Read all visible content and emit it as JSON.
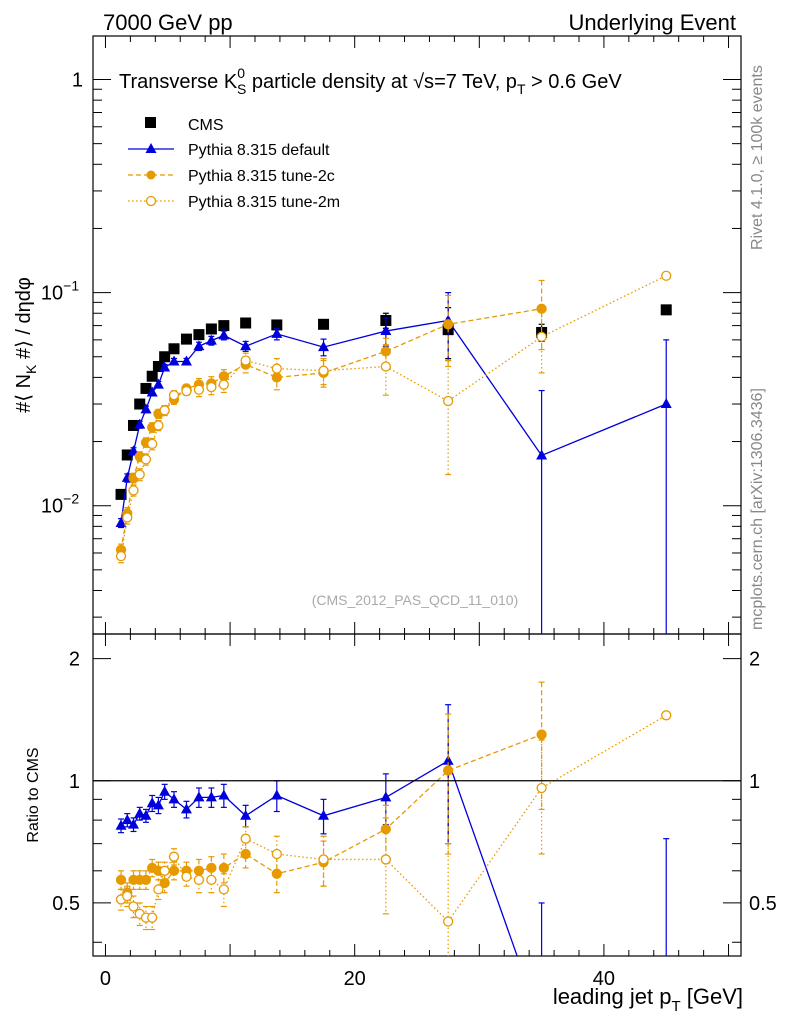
{
  "header": {
    "left": "7000 GeV pp",
    "right": "Underlying Event"
  },
  "side_labels": {
    "rivet": "Rivet 4.1.0, ≥ 100k events",
    "mcplots": "mcplots.cern.ch [arXiv:1306.3436]"
  },
  "chart_data": {
    "type": "scatter",
    "title": {
      "pre": "Transverse K",
      "sup": "0",
      "sub": "S",
      "mid": " particle density at ",
      "sqrt": "√s",
      "post": "=7 TeV, p",
      "sub2": "T",
      "tail": " > 0.6 GeV"
    },
    "ylabel": {
      "pre": "#⟨ N",
      "sub": "K",
      "post": " #⟩ / dηdφ"
    },
    "xlabel": {
      "pre": "leading jet p",
      "sub": "T",
      "post": " [GeV]"
    },
    "ratio_ylabel": "Ratio to CMS",
    "watermark": "(CMS_2012_PAS_QCD_11_010)",
    "xlim": [
      -1,
      51
    ],
    "ylim": [
      0.0025,
      1.6
    ],
    "ratio_ylim": [
      0.37,
      2.3
    ],
    "x_ticks": [
      "0",
      "20",
      "40"
    ],
    "y_tick_labels": [
      {
        "mant": "10",
        "exp": "−2"
      },
      {
        "mant": "10",
        "exp": "−1"
      },
      {
        "mant": "1",
        "exp": ""
      }
    ],
    "ratio_tick_labels": [
      "0.5",
      "1",
      "2"
    ],
    "x": [
      1.25,
      1.75,
      2.25,
      2.75,
      3.25,
      3.75,
      4.25,
      4.75,
      5.5,
      6.5,
      7.5,
      8.5,
      9.5,
      11.25,
      13.75,
      17.5,
      22.5,
      27.5,
      35.0,
      45.0
    ],
    "legend": [
      {
        "label": "CMS"
      },
      {
        "label": "Pythia 8.315 default"
      },
      {
        "label": "Pythia 8.315 tune-2c"
      },
      {
        "label": "Pythia 8.315 tune-2m"
      }
    ],
    "series": [
      {
        "name": "CMS",
        "color": "#000000",
        "values": [
          0.0113,
          0.0173,
          0.0238,
          0.03,
          0.0355,
          0.0405,
          0.045,
          0.05,
          0.0545,
          0.0605,
          0.0635,
          0.0675,
          0.07,
          0.072,
          0.0705,
          0.071,
          0.074,
          0.067,
          0.065,
          0.083
        ],
        "err": [
          0,
          0,
          0,
          0,
          0,
          0,
          0,
          0,
          0,
          0,
          0,
          0,
          0,
          0,
          0,
          0,
          0.006,
          0.018,
          0.006,
          0
        ],
        "ratio": [
          1,
          1,
          1,
          1,
          1,
          1,
          1,
          1,
          1,
          1,
          1,
          1,
          1,
          1,
          1,
          1,
          1,
          1,
          1,
          1
        ],
        "ratio_err": [
          0,
          0,
          0,
          0,
          0,
          0,
          0,
          0,
          0,
          0,
          0,
          0,
          0,
          0,
          0,
          0,
          0,
          0.27,
          0,
          0
        ]
      },
      {
        "name": "Pythia 8.315 default",
        "color": "#0000dd",
        "values": [
          0.0083,
          0.0135,
          0.018,
          0.024,
          0.0283,
          0.034,
          0.037,
          0.0445,
          0.0475,
          0.0475,
          0.056,
          0.0595,
          0.063,
          0.056,
          0.064,
          0.0555,
          0.066,
          0.074,
          0.0172,
          0.03
        ],
        "err": [
          0.0004,
          0.0006,
          0.0007,
          0.0009,
          0.001,
          0.0012,
          0.0013,
          0.0015,
          0.0016,
          0.0016,
          0.0025,
          0.0028,
          0.003,
          0.003,
          0.004,
          0.005,
          0.01,
          0.026,
          0.0175,
          0.03
        ],
        "ratio": [
          0.775,
          0.8,
          0.78,
          0.83,
          0.82,
          0.88,
          0.87,
          0.94,
          0.9,
          0.85,
          0.91,
          0.91,
          0.92,
          0.82,
          0.92,
          0.82,
          0.91,
          1.12,
          0.25,
          0.36
        ],
        "ratio_err": [
          0.03,
          0.03,
          0.03,
          0.03,
          0.03,
          0.04,
          0.04,
          0.04,
          0.04,
          0.04,
          0.05,
          0.05,
          0.06,
          0.05,
          0.08,
          0.08,
          0.13,
          0.42,
          0.25,
          0.36
        ]
      },
      {
        "name": "Pythia 8.315 tune-2c",
        "color": "#e69a00",
        "values": [
          0.0062,
          0.0092,
          0.0135,
          0.017,
          0.0198,
          0.0233,
          0.027,
          0.028,
          0.0315,
          0.0355,
          0.037,
          0.0375,
          0.0405,
          0.046,
          0.04,
          0.042,
          0.053,
          0.071,
          0.084,
          0.0
        ],
        "err": [
          0.0004,
          0.0006,
          0.0007,
          0.0009,
          0.001,
          0.0012,
          0.0013,
          0.0015,
          0.0016,
          0.0016,
          0.0025,
          0.0028,
          0.003,
          0.004,
          0.005,
          0.006,
          0.008,
          0.026,
          0.03,
          0
        ],
        "ratio": [
          0.57,
          0.53,
          0.57,
          0.57,
          0.57,
          0.61,
          0.6,
          0.56,
          0.6,
          0.6,
          0.6,
          0.61,
          0.61,
          0.66,
          0.59,
          0.63,
          0.76,
          1.06,
          1.3,
          0
        ],
        "ratio_err": [
          0.03,
          0.03,
          0.03,
          0.03,
          0.03,
          0.03,
          0.03,
          0.03,
          0.03,
          0.03,
          0.04,
          0.04,
          0.05,
          0.05,
          0.06,
          0.08,
          0.11,
          0.4,
          0.45,
          0
        ]
      },
      {
        "name": "Pythia 8.315 tune-2m",
        "color": "#e69a00",
        "values": [
          0.0058,
          0.0088,
          0.0118,
          0.014,
          0.0165,
          0.0195,
          0.0238,
          0.028,
          0.033,
          0.0345,
          0.035,
          0.036,
          0.037,
          0.048,
          0.044,
          0.043,
          0.045,
          0.031,
          0.062,
          0.12
        ],
        "err": [
          0.0004,
          0.0006,
          0.0007,
          0.0009,
          0.001,
          0.0012,
          0.0013,
          0.0015,
          0.0016,
          0.0016,
          0.0025,
          0.0028,
          0.003,
          0.004,
          0.005,
          0.006,
          0.012,
          0.017,
          0.02,
          0
        ],
        "ratio": [
          0.51,
          0.52,
          0.49,
          0.47,
          0.46,
          0.46,
          0.54,
          0.6,
          0.65,
          0.58,
          0.57,
          0.57,
          0.54,
          0.72,
          0.66,
          0.64,
          0.64,
          0.45,
          0.96,
          1.45
        ],
        "ratio_err": [
          0.03,
          0.03,
          0.03,
          0.03,
          0.03,
          0.03,
          0.03,
          0.03,
          0.03,
          0.03,
          0.04,
          0.04,
          0.05,
          0.05,
          0.07,
          0.09,
          0.17,
          0.25,
          0.3,
          0
        ]
      }
    ]
  }
}
